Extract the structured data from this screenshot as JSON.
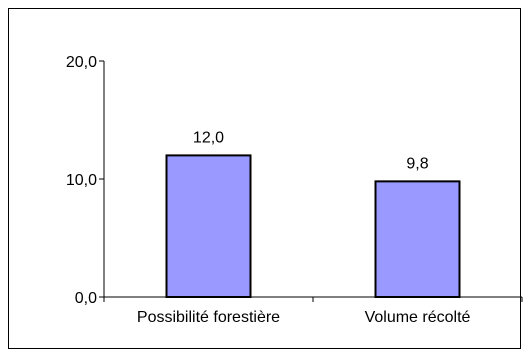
{
  "chart_data": {
    "type": "bar",
    "categories": [
      "Possibilité forestière",
      "Volume récolté"
    ],
    "values": [
      12.0,
      9.8
    ],
    "value_labels": [
      "12,0",
      "9,8"
    ],
    "ylim": [
      0,
      20
    ],
    "y_ticks": [
      0,
      10,
      20
    ],
    "y_tick_labels": [
      "0,0",
      "10,0",
      "20,0"
    ],
    "grid": false,
    "legend": "none",
    "colors": {
      "bar_fill": "#9999ff",
      "bar_stroke": "#000000",
      "axis": "#000000",
      "frame": "#000000"
    }
  }
}
